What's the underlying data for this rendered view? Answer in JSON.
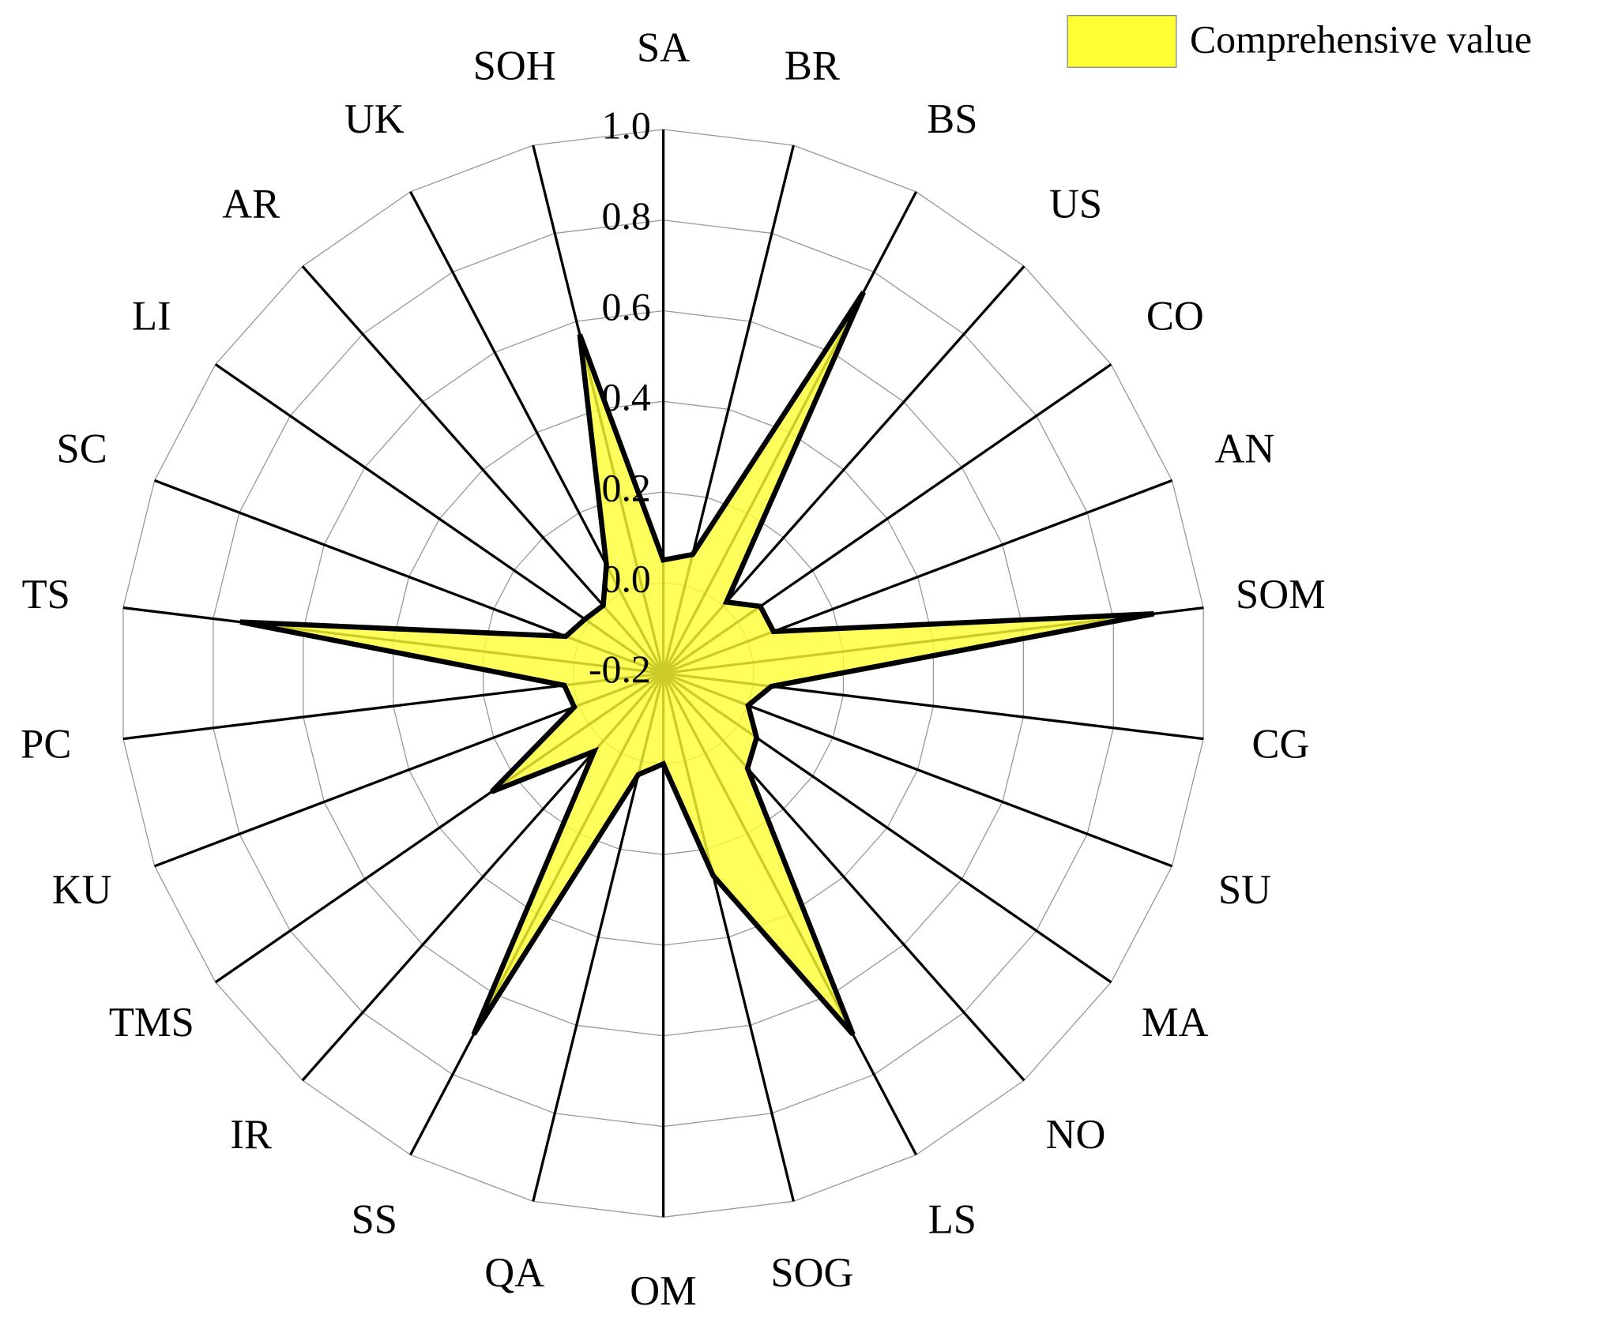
{
  "chart_data": {
    "type": "radar",
    "categories": [
      "SA",
      "BR",
      "BS",
      "US",
      "CO",
      "AN",
      "SOM",
      "CG",
      "SU",
      "MA",
      "NO",
      "LS",
      "SOG",
      "OM",
      "QA",
      "SS",
      "IR",
      "TMS",
      "KU",
      "PC",
      "TS",
      "SC",
      "LI",
      "AR",
      "UK",
      "SOH"
    ],
    "series": [
      {
        "name": "Comprehensive value",
        "color": "#ffff33",
        "values": [
          0.05,
          0.07,
          0.75,
          0.01,
          0.06,
          0.06,
          0.89,
          0.04,
          0.0,
          0.05,
          0.08,
          0.7,
          0.26,
          0.0,
          0.03,
          0.7,
          0.03,
          0.26,
          0.01,
          0.02,
          0.74,
          0.03,
          0.01,
          0.0,
          0.07,
          0.57
        ]
      }
    ],
    "ylim": [
      -0.2,
      1.0
    ],
    "yticks": [
      -0.2,
      {
        "value": 0,
        "label": "0.0"
      },
      0.2,
      0.4,
      0.6,
      0.8,
      {
        "value": 1,
        "label": "1.0"
      }
    ],
    "grid": true,
    "legend": "top-right"
  }
}
